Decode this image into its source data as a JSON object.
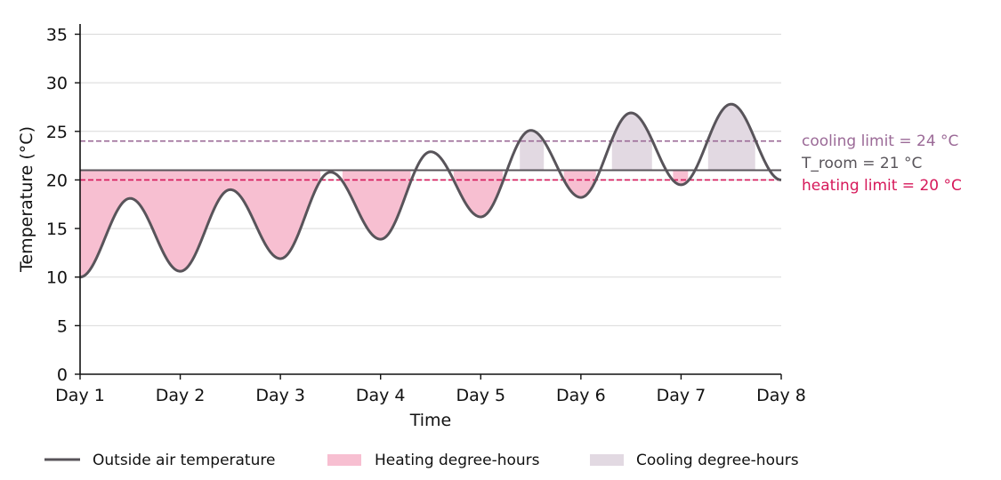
{
  "chart_data": {
    "type": "line",
    "xlabel": "Time",
    "ylabel": "Temperature (°C)",
    "x_ticks": [
      "Day 1",
      "Day 2",
      "Day 3",
      "Day 4",
      "Day 5",
      "Day 6",
      "Day 7",
      "Day 8"
    ],
    "xlim": [
      1,
      8
    ],
    "ylim": [
      0,
      36
    ],
    "y_ticks": [
      0,
      5,
      10,
      15,
      20,
      25,
      30,
      35
    ],
    "grid": "horizontal",
    "series": [
      {
        "name": "Outside air temperature",
        "color": "#58545a",
        "x_days": [
          1.0,
          1.5,
          2.0,
          2.5,
          3.0,
          3.5,
          4.0,
          4.5,
          5.0,
          5.5,
          6.0,
          6.5,
          7.0,
          7.5,
          8.0
        ],
        "values": [
          10.0,
          18.1,
          10.6,
          19.0,
          11.9,
          20.8,
          13.9,
          22.9,
          16.2,
          25.1,
          18.2,
          26.9,
          19.5,
          27.8,
          20.0
        ]
      }
    ],
    "reference_lines": {
      "room": {
        "label": "T_room = 21 °C",
        "value": 21,
        "color": "#58545a"
      },
      "cooling": {
        "label": "cooling limit = 24 °C",
        "value": 24,
        "color": "#9b6a97"
      },
      "heating": {
        "label": "heating limit = 20 °C",
        "value": 20,
        "color": "#d6185a"
      }
    },
    "areas": {
      "heating": {
        "name": "Heating degree-hours",
        "color": "#f7bfd1"
      },
      "cooling": {
        "name": "Cooling degree-hours",
        "color": "#e2d9e2"
      }
    },
    "legend_position": "bottom"
  }
}
